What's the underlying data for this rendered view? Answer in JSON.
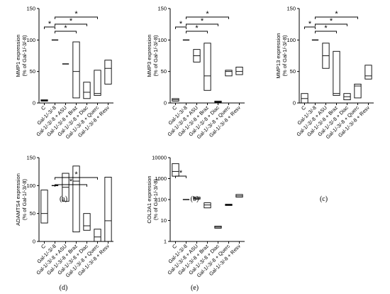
{
  "chart_data": [
    {
      "panel": "(a)",
      "type": "box",
      "ylabel": [
        "MMP1 expression",
        "(% of Gal-1/-3/-8)"
      ],
      "ylim": [
        0,
        150
      ],
      "yticks": [
        0,
        50,
        100,
        150
      ],
      "categories": [
        "C",
        "Gal-1/-3/-8",
        "Gal-1/-3/-8 + ASU",
        "Gal-1/-3/-8 + Braz",
        "Gal-1/-3/-8 + Diac",
        "Gal-1/-3/-8 + Querc",
        "Gal-1/-3/-8 + Resv"
      ],
      "boxes": [
        {
          "min": 2,
          "q1": 3,
          "median": 4,
          "q3": 5,
          "max": 6
        },
        {
          "min": 100,
          "q1": 100,
          "median": 100,
          "q3": 100,
          "max": 100
        },
        {
          "min": 62,
          "q1": 62,
          "median": 62,
          "q3": 62,
          "max": 62
        },
        {
          "min": 8,
          "q1": 8,
          "median": 50,
          "q3": 97,
          "max": 97
        },
        {
          "min": 7,
          "q1": 7,
          "median": 17,
          "q3": 33,
          "max": 33
        },
        {
          "min": 12,
          "q1": 12,
          "median": 15,
          "q3": 52,
          "max": 52
        },
        {
          "min": 30,
          "q1": 30,
          "median": 55,
          "q3": 68,
          "max": 68
        }
      ],
      "significance": [
        {
          "from": "C",
          "to": "Gal-1/-3/-8",
          "label": "*"
        },
        {
          "from": "Gal-1/-3/-8",
          "to": "Gal-1/-3/-8 + Braz",
          "label": "*"
        },
        {
          "from": "Gal-1/-3/-8",
          "to": "Gal-1/-3/-8 + Diac",
          "label": "*"
        },
        {
          "from": "Gal-1/-3/-8",
          "to": "Gal-1/-3/-8 + Querc",
          "label": "*"
        }
      ]
    },
    {
      "panel": "(b)",
      "type": "box",
      "ylabel": [
        "MMP3 expression",
        "(% of Gal-1/-3/-8)"
      ],
      "ylim": [
        0,
        150
      ],
      "yticks": [
        0,
        50,
        100,
        150
      ],
      "categories": [
        "C",
        "Gal-1/-3/-8",
        "Gal-1/-3/-8 + ASU",
        "Gal-1/-3/-8 + Braz",
        "Gal-1/-3/-8 + Diac",
        "Gal-1/-3/-8 + Querc",
        "Gal-1/-3/-8 + Resv"
      ],
      "boxes": [
        {
          "min": 2,
          "q1": 3,
          "median": 5,
          "q3": 7,
          "max": 8
        },
        {
          "min": 100,
          "q1": 100,
          "median": 100,
          "q3": 100,
          "max": 100
        },
        {
          "min": 65,
          "q1": 65,
          "median": 75,
          "q3": 85,
          "max": 85
        },
        {
          "min": 20,
          "q1": 20,
          "median": 43,
          "q3": 95,
          "max": 95
        },
        {
          "min": 1,
          "q1": 1,
          "median": 2,
          "q3": 3,
          "max": 3
        },
        {
          "min": 43,
          "q1": 43,
          "median": 50,
          "q3": 52,
          "max": 52
        },
        {
          "min": 45,
          "q1": 45,
          "median": 50,
          "q3": 57,
          "max": 57
        }
      ],
      "significance": [
        {
          "from": "C",
          "to": "Gal-1/-3/-8",
          "label": "*"
        },
        {
          "from": "Gal-1/-3/-8",
          "to": "Gal-1/-3/-8 + Braz",
          "label": "*"
        },
        {
          "from": "Gal-1/-3/-8",
          "to": "Gal-1/-3/-8 + Diac",
          "label": "*"
        },
        {
          "from": "Gal-1/-3/-8",
          "to": "Gal-1/-3/-8 + Querc",
          "label": "*"
        }
      ]
    },
    {
      "panel": "(c)",
      "type": "box",
      "ylabel": [
        "MMP13 expression",
        "(% of Gal-1/-3/-8)"
      ],
      "ylim": [
        0,
        150
      ],
      "yticks": [
        0,
        50,
        100,
        150
      ],
      "categories": [
        "C",
        "Gal-1/-3/-8",
        "Gal-1/-3/-8 + ASU",
        "Gal-1/-3/-8 + Braz",
        "Gal-1/-3/-8 + Diac",
        "Gal-1/-3/-8 + Querc",
        "Gal-1/-3/-8 + Resv"
      ],
      "boxes": [
        {
          "min": 0,
          "q1": 0,
          "median": 7,
          "q3": 15,
          "max": 15
        },
        {
          "min": 100,
          "q1": 100,
          "median": 100,
          "q3": 100,
          "max": 100
        },
        {
          "min": 55,
          "q1": 55,
          "median": 75,
          "q3": 95,
          "max": 95
        },
        {
          "min": 12,
          "q1": 12,
          "median": 15,
          "q3": 82,
          "max": 82
        },
        {
          "min": 5,
          "q1": 5,
          "median": 10,
          "q3": 15,
          "max": 15
        },
        {
          "min": 8,
          "q1": 8,
          "median": 27,
          "q3": 30,
          "max": 30
        },
        {
          "min": 38,
          "q1": 38,
          "median": 43,
          "q3": 60,
          "max": 60
        }
      ],
      "significance": [
        {
          "from": "C",
          "to": "Gal-1/-3/-8",
          "label": "*"
        },
        {
          "from": "Gal-1/-3/-8",
          "to": "Gal-1/-3/-8 + Braz",
          "label": "*"
        },
        {
          "from": "Gal-1/-3/-8",
          "to": "Gal-1/-3/-8 + Diac",
          "label": "*"
        },
        {
          "from": "Gal-1/-3/-8",
          "to": "Gal-1/-3/-8 + Querc",
          "label": "*"
        }
      ]
    },
    {
      "panel": "(d)",
      "type": "box",
      "ylabel": [
        "ADAMTS4 expression",
        "(% of Gal-1/-3/-8)"
      ],
      "ylim": [
        0,
        150
      ],
      "yticks": [
        0,
        50,
        100,
        150
      ],
      "categories": [
        "C",
        "Gal-1/-3/-8",
        "Gal-1/-3/-8 + ASU",
        "Gal-1/-3/-8 + Braz",
        "Gal-1/-3/-8 + Diac",
        "Gal-1/-3/-8 + Querc",
        "Gal-1/-3/-8 + Resv"
      ],
      "boxes": [
        {
          "min": 33,
          "q1": 33,
          "median": 50,
          "q3": 92,
          "max": 92
        },
        {
          "min": 100,
          "q1": 100,
          "median": 100,
          "q3": 100,
          "max": 100
        },
        {
          "min": 72,
          "q1": 72,
          "median": 97,
          "q3": 122,
          "max": 122
        },
        {
          "min": 17,
          "q1": 17,
          "median": 108,
          "q3": 135,
          "max": 135
        },
        {
          "min": 20,
          "q1": 20,
          "median": 28,
          "q3": 50,
          "max": 50
        },
        {
          "min": 0,
          "q1": 0,
          "median": 8,
          "q3": 22,
          "max": 22
        },
        {
          "min": 0,
          "q1": 0,
          "median": 37,
          "q3": 115,
          "max": 115
        }
      ],
      "significance": [
        {
          "from": "Gal-1/-3/-8",
          "to": "Gal-1/-3/-8 + Diac",
          "label": "*"
        },
        {
          "from": "Gal-1/-3/-8",
          "to": "Gal-1/-3/-8 + Querc",
          "label": "*"
        }
      ]
    },
    {
      "panel": "(e)",
      "type": "box",
      "yscale": "log",
      "ylabel": [
        "COL2A1 expression",
        "(% of Gal-1/-3/-8)"
      ],
      "ylim": [
        1,
        10000
      ],
      "yticks": [
        1,
        10,
        100,
        1000,
        10000
      ],
      "categories": [
        "C",
        "Gal-1/-3/-8",
        "Gal-1/-3/-8 + ASU",
        "Gal-1/-3/-8 + Braz",
        "Gal-1/-3/-8 + Diac",
        "Gal-1/-3/-8 + Querc",
        "Gal-1/-3/-8 + Resv"
      ],
      "boxes": [
        {
          "min": 1300,
          "q1": 1300,
          "median": 2200,
          "q3": 5200,
          "max": 5200
        },
        {
          "min": 100,
          "q1": 100,
          "median": 100,
          "q3": 100,
          "max": 100
        },
        {
          "min": 105,
          "q1": 105,
          "median": 115,
          "q3": 130,
          "max": 130
        },
        {
          "min": 40,
          "q1": 40,
          "median": 55,
          "q3": 70,
          "max": 70
        },
        {
          "min": 4.3,
          "q1": 4.3,
          "median": 4.8,
          "q3": 5.4,
          "max": 5.4
        },
        {
          "min": 52,
          "q1": 52,
          "median": 56,
          "q3": 60,
          "max": 60
        },
        {
          "min": 130,
          "q1": 130,
          "median": 150,
          "q3": 175,
          "max": 175
        }
      ],
      "significance": [
        {
          "from": "C",
          "to": "Gal-1/-3/-8",
          "label": "*"
        }
      ]
    }
  ]
}
